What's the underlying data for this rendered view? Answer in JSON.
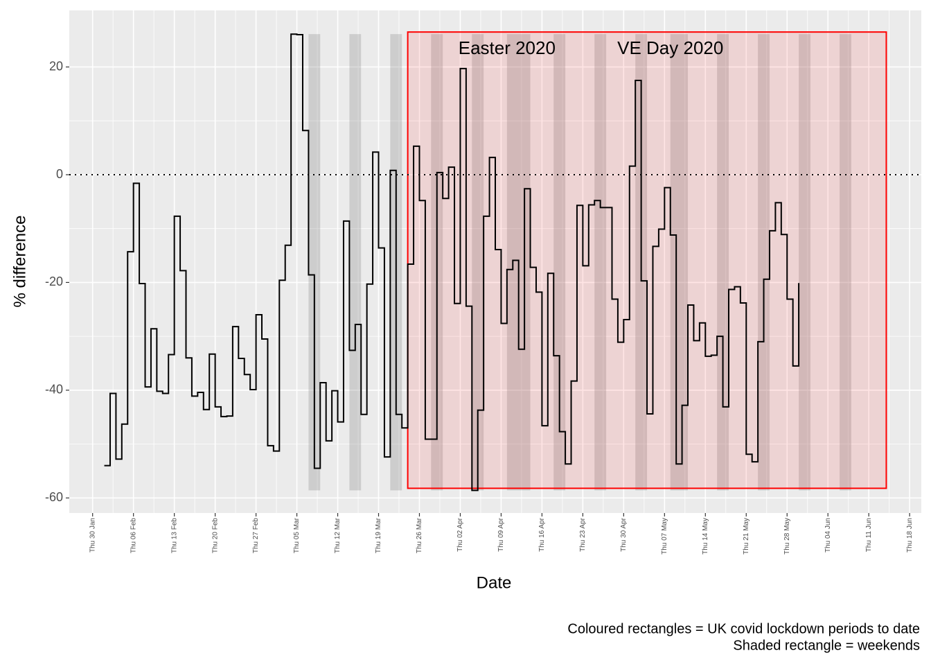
{
  "chart_data": {
    "type": "step",
    "x_label": "Date",
    "y_label": "% difference",
    "caption": [
      "Coloured rectangles = UK covid lockdown periods to date",
      "Shaded rectangle = weekends"
    ],
    "xlim": [
      "26 Jan",
      "20 Jun"
    ],
    "xticks": [
      "Thu 30 Jan",
      "Thu 06 Feb",
      "Thu 13 Feb",
      "Thu 20 Feb",
      "Thu 27 Feb",
      "Thu 05 Mar",
      "Thu 12 Mar",
      "Thu 19 Mar",
      "Thu 26 Mar",
      "Thu 02 Apr",
      "Thu 09 Apr",
      "Thu 16 Apr",
      "Thu 23 Apr",
      "Thu 30 Apr",
      "Thu 07 May",
      "Thu 14 May",
      "Thu 21 May",
      "Thu 28 May",
      "Thu 04 Jun",
      "Thu 11 Jun",
      "Thu 18 Jun"
    ],
    "ylim": [
      -62.8,
      30.5
    ],
    "yticks": [
      -60,
      -40,
      -20,
      0,
      20
    ],
    "grid": true,
    "hline": 0,
    "x": [
      "01 Feb",
      "02 Feb",
      "03 Feb",
      "04 Feb",
      "05 Feb",
      "06 Feb",
      "07 Feb",
      "08 Feb",
      "09 Feb",
      "10 Feb",
      "11 Feb",
      "12 Feb",
      "13 Feb",
      "14 Feb",
      "15 Feb",
      "16 Feb",
      "17 Feb",
      "18 Feb",
      "19 Feb",
      "20 Feb",
      "21 Feb",
      "22 Feb",
      "23 Feb",
      "24 Feb",
      "25 Feb",
      "26 Feb",
      "27 Feb",
      "28 Feb",
      "29 Feb",
      "01 Mar",
      "02 Mar",
      "03 Mar",
      "04 Mar",
      "05 Mar",
      "06 Mar",
      "07 Mar",
      "08 Mar",
      "09 Mar",
      "10 Mar",
      "11 Mar",
      "12 Mar",
      "13 Mar",
      "14 Mar",
      "15 Mar",
      "16 Mar",
      "17 Mar",
      "18 Mar",
      "19 Mar",
      "20 Mar",
      "21 Mar",
      "22 Mar",
      "23 Mar",
      "24 Mar",
      "25 Mar",
      "26 Mar",
      "27 Mar",
      "28 Mar",
      "29 Mar",
      "30 Mar",
      "31 Mar",
      "01 Apr",
      "02 Apr",
      "03 Apr",
      "04 Apr",
      "05 Apr",
      "06 Apr",
      "07 Apr",
      "08 Apr",
      "09 Apr",
      "10 Apr",
      "11 Apr",
      "12 Apr",
      "13 Apr",
      "14 Apr",
      "15 Apr",
      "16 Apr",
      "17 Apr",
      "18 Apr",
      "19 Apr",
      "20 Apr",
      "21 Apr",
      "22 Apr",
      "23 Apr",
      "24 Apr",
      "25 Apr",
      "26 Apr",
      "27 Apr",
      "28 Apr",
      "29 Apr",
      "30 Apr",
      "01 May",
      "02 May",
      "03 May",
      "04 May",
      "05 May",
      "06 May",
      "07 May",
      "08 May",
      "09 May",
      "10 May",
      "11 May",
      "12 May",
      "13 May",
      "14 May",
      "15 May",
      "16 May",
      "17 May",
      "18 May",
      "19 May",
      "20 May",
      "21 May",
      "22 May",
      "23 May",
      "24 May",
      "25 May",
      "26 May",
      "27 May",
      "28 May",
      "29 May",
      "30 May"
    ],
    "series": [
      {
        "color": "#000000",
        "values": [
          -54.0,
          -40.6,
          -52.8,
          -46.3,
          -14.3,
          -1.6,
          -20.2,
          -39.4,
          -28.6,
          -40.2,
          -40.6,
          -33.4,
          -7.7,
          -17.8,
          -34.0,
          -41.1,
          -40.4,
          -43.6,
          -33.3,
          -43.1,
          -44.9,
          -44.8,
          -28.2,
          -34.1,
          -37.1,
          -39.9,
          -26.0,
          -30.5,
          -50.3,
          -51.3,
          -19.6,
          -13.1,
          26.1,
          26.0,
          8.2,
          -18.6,
          -54.5,
          -38.6,
          -49.4,
          -40.1,
          -45.9,
          -8.6,
          -32.6,
          -27.8,
          -44.5,
          -20.3,
          4.2,
          -13.6,
          -52.4,
          0.8,
          -44.5,
          -47.0,
          -16.6,
          5.3,
          -4.8,
          -49.1,
          -49.1,
          0.4,
          -4.4,
          1.4,
          -23.9,
          19.7,
          -24.4,
          -58.6,
          -43.7,
          -7.7,
          3.2,
          -13.9,
          -27.6,
          -17.6,
          -15.9,
          -32.4,
          -2.6,
          -17.2,
          -21.8,
          -46.6,
          -18.3,
          -33.6,
          -47.7,
          -53.7,
          -38.3,
          -5.7,
          -16.9,
          -5.6,
          -4.8,
          -6.1,
          -6.1,
          -23.1,
          -31.1,
          -26.9,
          1.6,
          17.5,
          -19.7,
          -44.4,
          -13.3,
          -10.1,
          -2.4,
          -11.2,
          -53.7,
          -42.8,
          -24.2,
          -30.8,
          -27.5,
          -33.7,
          -33.5,
          -30.0,
          -43.1,
          -21.3,
          -20.8,
          -23.8,
          -51.9,
          -53.3,
          -31.0,
          -19.4,
          -10.4,
          -5.2,
          -11.1,
          -23.1,
          -35.5,
          -20.1
        ]
      }
    ],
    "weekends": {
      "color": "#808080",
      "periods": [
        [
          "07 Mar",
          "09 Mar"
        ],
        [
          "14 Mar",
          "16 Mar"
        ],
        [
          "21 Mar",
          "23 Mar"
        ],
        [
          "28 Mar",
          "30 Mar"
        ],
        [
          "04 Apr",
          "06 Apr"
        ],
        [
          "10 Apr",
          "14 Apr"
        ],
        [
          "18 Apr",
          "20 Apr"
        ],
        [
          "25 Apr",
          "27 Apr"
        ],
        [
          "02 May",
          "04 May"
        ],
        [
          "08 May",
          "11 May"
        ],
        [
          "16 May",
          "18 May"
        ],
        [
          "23 May",
          "25 May"
        ],
        [
          "30 May",
          "01 Jun"
        ],
        [
          "06 Jun",
          "08 Jun"
        ]
      ]
    },
    "lockdown": {
      "color": "#ff0000",
      "periods": [
        [
          "24 Mar",
          "14 Jun"
        ]
      ]
    },
    "annotations": [
      {
        "text": "Easter 2020",
        "x": "10 Apr",
        "y": 23.3
      },
      {
        "text": "VE Day 2020",
        "x": "08 May",
        "y": 23.3
      }
    ]
  }
}
